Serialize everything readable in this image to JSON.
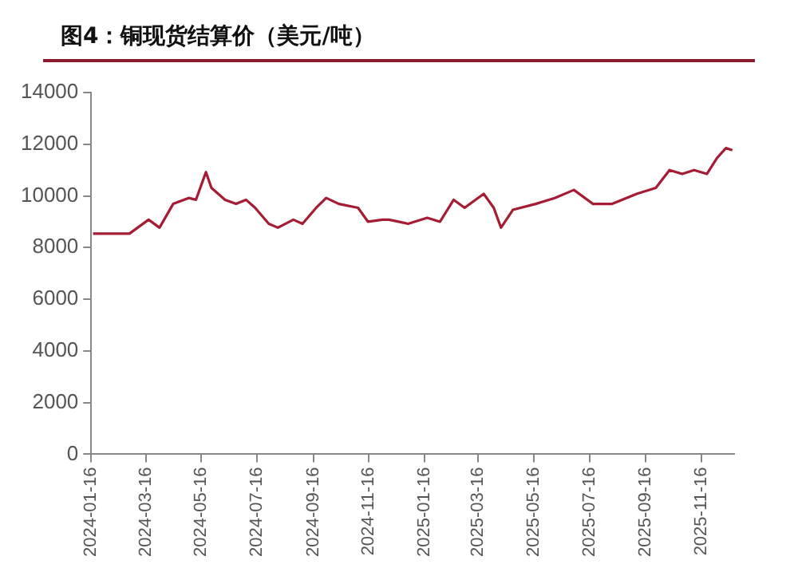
{
  "chart_data": {
    "type": "line",
    "title": "图4：铜现货结算价（美元/吨）",
    "x": [
      "2024-01-18",
      "2024-02-27",
      "2024-03-19",
      "2024-03-31",
      "2024-04-15",
      "2024-05-02",
      "2024-05-10",
      "2024-05-21",
      "2024-05-27",
      "2024-06-11",
      "2024-06-23",
      "2024-07-04",
      "2024-07-14",
      "2024-07-29",
      "2024-08-08",
      "2024-08-25",
      "2024-09-04",
      "2024-09-19",
      "2024-09-30",
      "2024-10-14",
      "2024-11-04",
      "2024-11-15",
      "2024-12-01",
      "2024-12-08",
      "2024-12-29",
      "2025-01-19",
      "2025-02-02",
      "2025-02-17",
      "2025-03-01",
      "2025-03-22",
      "2025-04-02",
      "2025-04-10",
      "2025-04-23",
      "2025-05-18",
      "2025-06-08",
      "2025-06-29",
      "2025-07-20",
      "2025-08-10",
      "2025-09-06",
      "2025-09-27",
      "2025-10-12",
      "2025-10-26",
      "2025-11-08",
      "2025-11-22",
      "2025-12-03",
      "2025-12-13",
      "2025-12-20"
    ],
    "series": [
      {
        "color": "#a51c35",
        "values": [
          8540,
          8540,
          9080,
          8770,
          9690,
          9920,
          9850,
          10920,
          10310,
          9850,
          9690,
          9850,
          9540,
          8920,
          8770,
          9080,
          8920,
          9540,
          9920,
          9690,
          9540,
          9000,
          9080,
          9080,
          8920,
          9150,
          9000,
          9850,
          9540,
          10080,
          9540,
          8770,
          9460,
          9690,
          9920,
          10230,
          9690,
          9690,
          10080,
          10310,
          11000,
          10850,
          11000,
          10850,
          11460,
          11850,
          11770
        ]
      }
    ],
    "xlim": [
      "2024-01-16",
      "2025-12-22"
    ],
    "xticks": [
      "2024-01-16",
      "2024-03-16",
      "2024-05-16",
      "2024-07-16",
      "2024-09-16",
      "2024-11-16",
      "2025-01-16",
      "2025-03-16",
      "2025-05-16",
      "2025-07-16",
      "2025-09-16",
      "2025-11-16"
    ],
    "ylim": [
      0,
      14000
    ],
    "yticks": [
      0,
      2000,
      4000,
      6000,
      8000,
      10000,
      12000,
      14000
    ],
    "grid": false,
    "legend": false,
    "marker": "none",
    "line_style": "solid"
  }
}
